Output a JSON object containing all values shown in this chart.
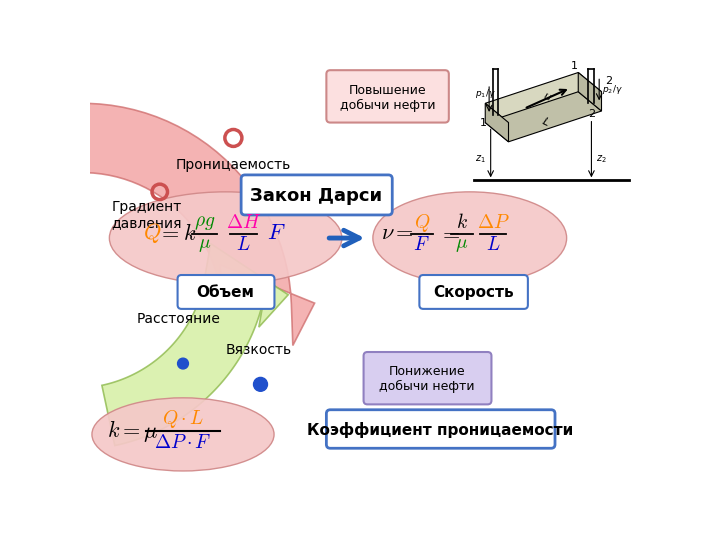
{
  "bg_color": "#ffffff",
  "text_povyshenie": "Повышение\nдобычи нефти",
  "text_ponijenie": "Понижение\nдобычи нефти",
  "text_pronitsaemost": "Проницаемость",
  "text_gradient": "Градиент\nдавления",
  "text_zakon": "Закон Дарси",
  "text_obem": "Объем",
  "text_skorost": "Скорость",
  "text_rasstoyaniye": "Расстояние",
  "text_vyaszkost": "Вязкость",
  "text_koeff": "Коэффициент проницаемости"
}
